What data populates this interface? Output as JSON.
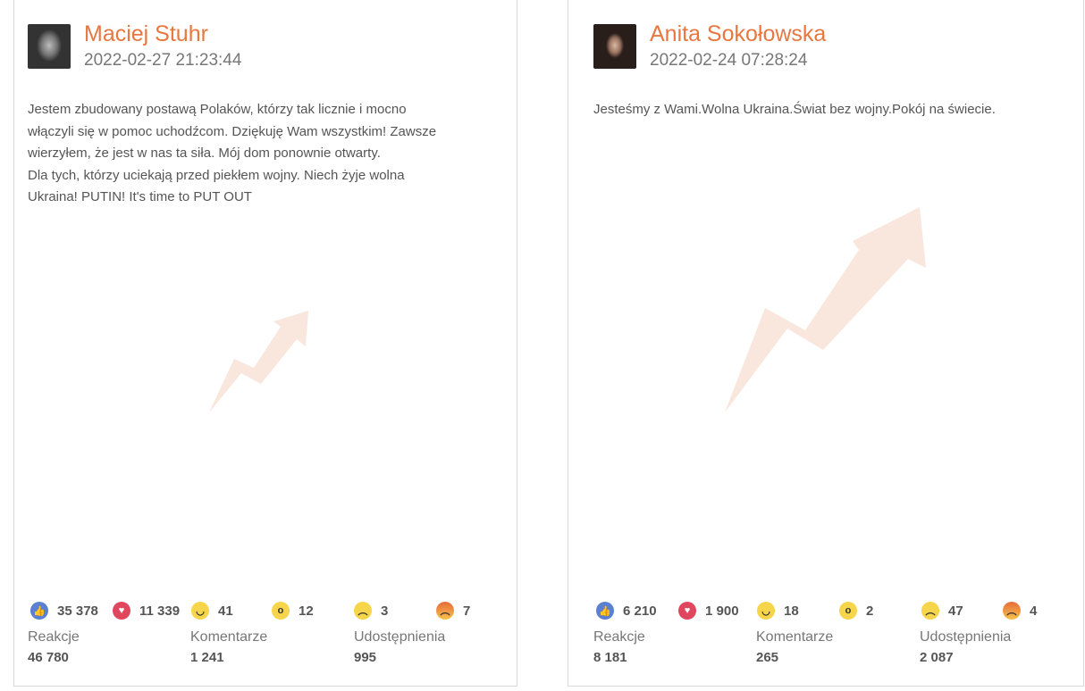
{
  "posts": [
    {
      "author": "Maciej Stuhr",
      "date": "2022-02-27 21:23:44",
      "text": "Jestem zbudowany postawą Polaków, którzy tak licznie i mocno\nwłączyli się w pomoc uchodźcom. Dziękuję Wam wszystkim! Zawsze\nwierzyłem, że jest w nas ta siła. Mój dom ponownie otwarty.\nDla tych, którzy uciekają przed piekłem wojny. Niech żyje wolna\nUkraina! PUTIN! It's time to PUT OUT",
      "reactions": {
        "like": "35 378",
        "love": "11 339",
        "haha": "41",
        "wow": "12",
        "sad": "3",
        "angry": "7"
      },
      "stats": [
        {
          "label": "Reakcje",
          "value": "46 780"
        },
        {
          "label": "Komentarze",
          "value": "1 241"
        },
        {
          "label": "Udostępnienia",
          "value": "995"
        }
      ]
    },
    {
      "author": "Anita Sokołowska",
      "date": "2022-02-24 07:28:24",
      "text": "Jesteśmy z Wami.Wolna Ukraina.Świat bez wojny.Pokój na świecie.",
      "reactions": {
        "like": "6 210",
        "love": "1 900",
        "haha": "18",
        "wow": "2",
        "sad": "47",
        "angry": "4"
      },
      "stats": [
        {
          "label": "Reakcje",
          "value": "8 181"
        },
        {
          "label": "Komentarze",
          "value": "265"
        },
        {
          "label": "Udostępnienia",
          "value": "2 087"
        }
      ]
    }
  ],
  "colors": {
    "author": "#e8773f",
    "arrow": "#f9e6dc",
    "like": "#5b7fd1",
    "love": "#e0475e"
  }
}
